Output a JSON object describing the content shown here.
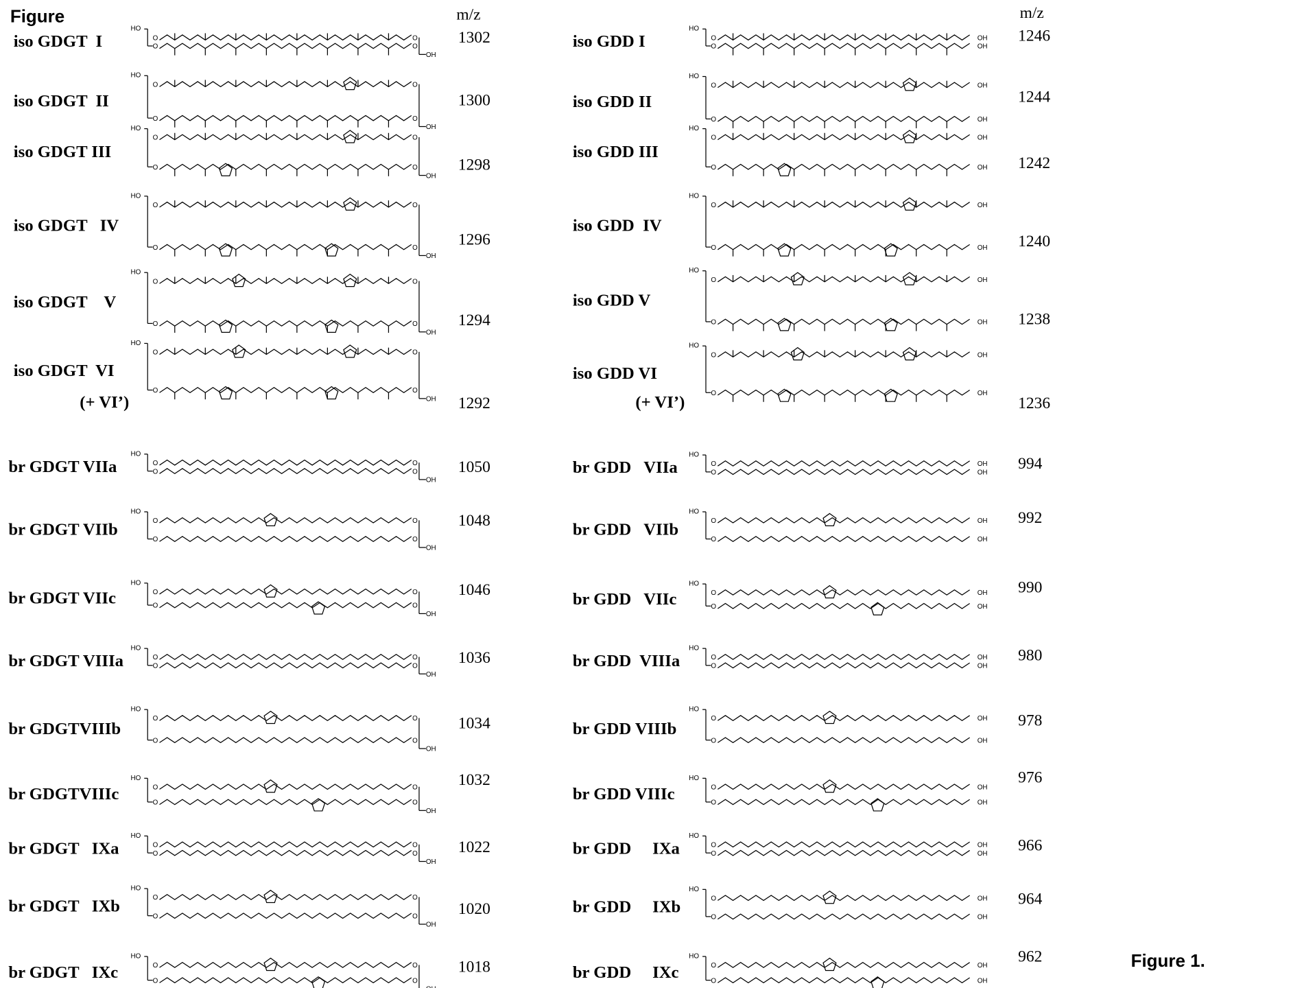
{
  "header": {
    "title": "Figure",
    "mz_left": "m/z",
    "mz_right": "m/z"
  },
  "atoms": {
    "ho": "HO",
    "o": "O",
    "oh": "OH"
  },
  "left": [
    {
      "label": "iso GDGT  I",
      "mz": "1302"
    },
    {
      "label": "iso GDGT  II",
      "mz": "1300"
    },
    {
      "label": "iso GDGT III",
      "mz": "1298"
    },
    {
      "label": "iso GDGT   IV",
      "mz": "1296"
    },
    {
      "label": "iso GDGT    V",
      "mz": "1294"
    },
    {
      "label": "iso GDGT  VI",
      "sub": "(+ VI’)",
      "mz": "1292"
    },
    {
      "label": "br GDGT VIIa",
      "mz": "1050"
    },
    {
      "label": "br GDGT VIIb",
      "mz": "1048"
    },
    {
      "label": "br GDGT VIIc",
      "mz": "1046"
    },
    {
      "label": "br GDGT VIIIa",
      "mz": "1036"
    },
    {
      "label": "br GDGTVIIIb",
      "mz": "1034"
    },
    {
      "label": "br GDGTVIIIc",
      "mz": "1032"
    },
    {
      "label": "br GDGT   IXa",
      "mz": "1022"
    },
    {
      "label": "br GDGT   IXb",
      "mz": "1020"
    },
    {
      "label": "br GDGT   IXc",
      "mz": "1018"
    }
  ],
  "right": [
    {
      "label": "iso GDD I",
      "mz": "1246"
    },
    {
      "label": "iso GDD II",
      "mz": "1244"
    },
    {
      "label": "iso GDD III",
      "mz": "1242"
    },
    {
      "label": "iso GDD  IV",
      "mz": "1240"
    },
    {
      "label": "iso GDD V",
      "mz": "1238"
    },
    {
      "label": "iso GDD VI",
      "sub": "(+ VI’)",
      "mz": "1236"
    },
    {
      "label": "br GDD   VIIa",
      "mz": "994"
    },
    {
      "label": "br GDD   VIIb",
      "mz": "992"
    },
    {
      "label": "br GDD   VIIc",
      "mz": "990"
    },
    {
      "label": "br GDD  VIIIa",
      "mz": "980"
    },
    {
      "label": "br GDD VIIIb",
      "mz": "978"
    },
    {
      "label": "br GDD VIIIc",
      "mz": "976"
    },
    {
      "label": "br GDD     IXa",
      "mz": "966"
    },
    {
      "label": "br GDD     IXb",
      "mz": "964"
    },
    {
      "label": "br GDD     IXc",
      "mz": "962"
    }
  ],
  "footer": {
    "caption": "Figure 1."
  }
}
